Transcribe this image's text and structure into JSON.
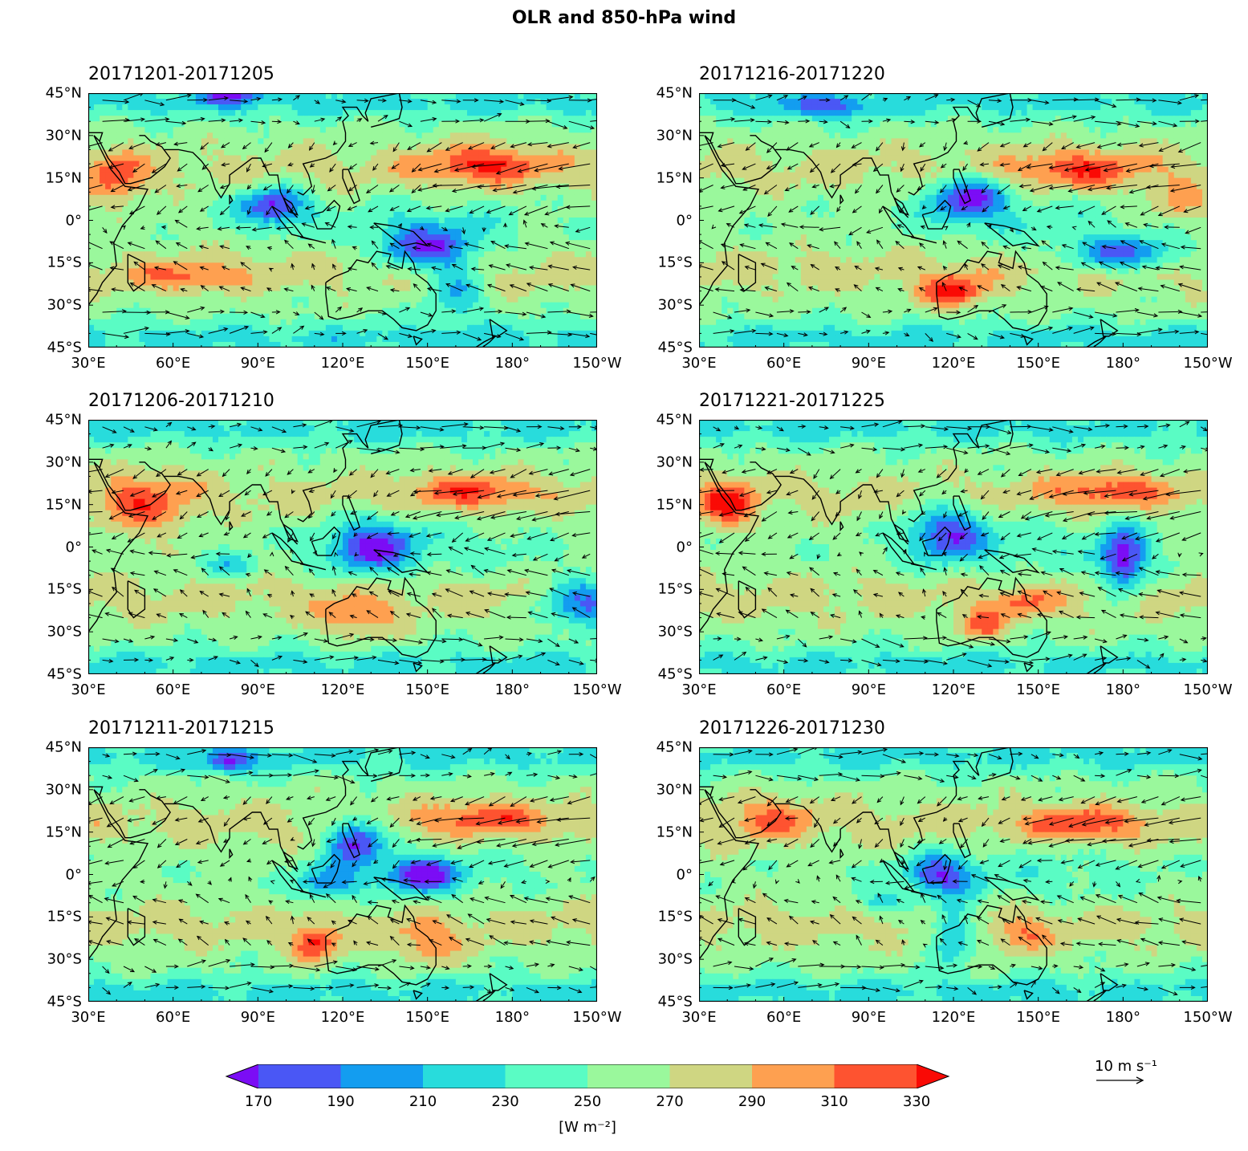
{
  "title": "OLR and 850-hPa wind",
  "panels": [
    {
      "label": "20171201-20171205"
    },
    {
      "label": "20171216-20171220"
    },
    {
      "label": "20171206-20171210"
    },
    {
      "label": "20171221-20171225"
    },
    {
      "label": "20171211-20171215"
    },
    {
      "label": "20171226-20171230"
    }
  ],
  "axes": {
    "lat_ticks": [
      "45°N",
      "30°N",
      "15°N",
      "0°",
      "15°S",
      "30°S",
      "45°S"
    ],
    "lon_ticks": [
      "30°E",
      "60°E",
      "90°E",
      "120°E",
      "150°E",
      "180°",
      "150°W"
    ],
    "lon_range": [
      30,
      210
    ],
    "lat_range": [
      -45,
      45
    ]
  },
  "colorbar": {
    "ticks": [
      "170",
      "190",
      "210",
      "230",
      "250",
      "270",
      "290",
      "310",
      "330"
    ],
    "colors": [
      "#7b0df5",
      "#4a57f5",
      "#139df0",
      "#28dcdc",
      "#5afcc4",
      "#9af89c",
      "#cfd682",
      "#fea050",
      "#fe5330",
      "#fa0a05"
    ],
    "units": "[W m⁻²]",
    "extend": "both"
  },
  "reference_vector": {
    "label": "10 m s⁻¹"
  }
}
